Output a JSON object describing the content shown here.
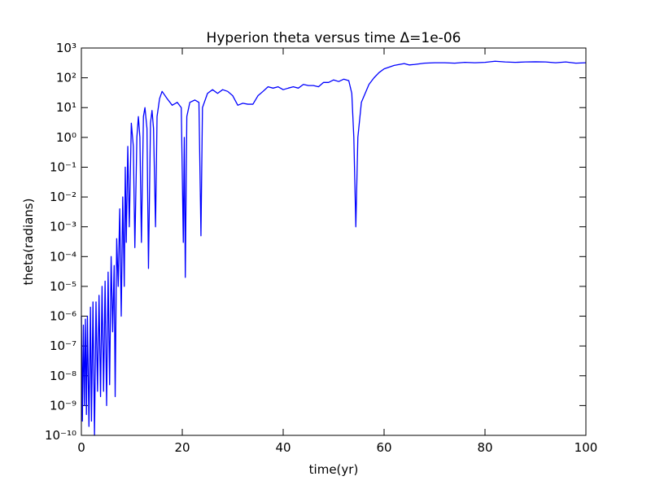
{
  "chart_data": {
    "type": "line",
    "title": "Hyperion  theta versus time Δ=1e-06",
    "x_label": "time(yr)",
    "y_label": "theta(radians)",
    "color": "#0000ff",
    "y_scale": "log",
    "xlim": [
      0,
      100
    ],
    "xticks": [
      0,
      20,
      40,
      60,
      80,
      100
    ],
    "ylim": [
      1e-10,
      1000
    ],
    "yticks": [
      {
        "value": 1e-10,
        "label": "10⁻¹⁰"
      },
      {
        "value": 1e-09,
        "label": "10⁻⁹"
      },
      {
        "value": 1e-08,
        "label": "10⁻⁸"
      },
      {
        "value": 1e-07,
        "label": "10⁻⁷"
      },
      {
        "value": 1e-06,
        "label": "10⁻⁶"
      },
      {
        "value": 1e-05,
        "label": "10⁻⁵"
      },
      {
        "value": 0.0001,
        "label": "10⁻⁴"
      },
      {
        "value": 0.001,
        "label": "10⁻³"
      },
      {
        "value": 0.01,
        "label": "10⁻²"
      },
      {
        "value": 0.1,
        "label": "10⁻¹"
      },
      {
        "value": 1,
        "label": "10⁰"
      },
      {
        "value": 10,
        "label": "10¹"
      },
      {
        "value": 100,
        "label": "10²"
      },
      {
        "value": 1000,
        "label": "10³"
      }
    ],
    "x": [
      0,
      0.2,
      0.4,
      0.6,
      0.8,
      1.0,
      1.2,
      1.5,
      1.8,
      2.0,
      2.3,
      2.6,
      2.9,
      3.2,
      3.5,
      3.8,
      4.1,
      4.4,
      4.7,
      5.0,
      5.3,
      5.6,
      5.9,
      6.2,
      6.5,
      6.7,
      7.0,
      7.3,
      7.6,
      7.9,
      8.2,
      8.5,
      8.7,
      8.9,
      9.2,
      9.5,
      9.9,
      10.3,
      10.6,
      11.0,
      11.3,
      11.6,
      11.9,
      12.3,
      12.6,
      13.0,
      13.3,
      13.7,
      14.0,
      14.3,
      14.7,
      15.0,
      15.5,
      16.0,
      17.0,
      18.0,
      19.0,
      19.8,
      20.2,
      20.4,
      20.6,
      20.9,
      21.5,
      22.5,
      23.3,
      23.7,
      24.0,
      25,
      26,
      27,
      28,
      29,
      30,
      31,
      32,
      33,
      34,
      35,
      36,
      37,
      38,
      39,
      40,
      41,
      42,
      43,
      44,
      45,
      46,
      47,
      48,
      49,
      50,
      51,
      52,
      53,
      53.6,
      54.0,
      54.4,
      54.8,
      55.5,
      57,
      58,
      59,
      60,
      62,
      64,
      65,
      66,
      68,
      70,
      72,
      74,
      76,
      78,
      80,
      82,
      84,
      86,
      88,
      90,
      92,
      94,
      96,
      98,
      100
    ],
    "values": [
      1e-06,
      3e-10,
      5e-07,
      1e-09,
      8e-07,
      5e-10,
      1e-06,
      2e-10,
      2e-06,
      3e-10,
      3e-06,
      1e-10,
      3e-06,
      3e-09,
      5e-06,
      2e-09,
      1e-05,
      3e-09,
      1.5e-05,
      1e-09,
      3e-05,
      5e-09,
      0.0001,
      3e-07,
      5e-05,
      2e-09,
      0.0004,
      1e-05,
      0.004,
      1e-06,
      0.01,
      1e-05,
      0.1,
      0.0003,
      0.5,
      0.001,
      3,
      0.5,
      0.0002,
      1,
      5,
      1,
      0.0003,
      5,
      10,
      2,
      4e-05,
      3,
      8,
      2,
      0.001,
      5,
      20,
      35,
      20,
      12,
      15,
      10,
      0.0003,
      1,
      2e-05,
      5,
      15,
      18,
      15,
      0.0005,
      10,
      30,
      40,
      30,
      40,
      35,
      25,
      12,
      14,
      13,
      13,
      25,
      35,
      50,
      45,
      50,
      40,
      45,
      50,
      45,
      60,
      55,
      55,
      50,
      70,
      70,
      85,
      75,
      90,
      80,
      30,
      1,
      0.001,
      1,
      15,
      60,
      100,
      150,
      200,
      260,
      300,
      270,
      280,
      310,
      320,
      320,
      310,
      330,
      320,
      330,
      360,
      340,
      330,
      340,
      345,
      340,
      320,
      340,
      310,
      320
    ]
  }
}
